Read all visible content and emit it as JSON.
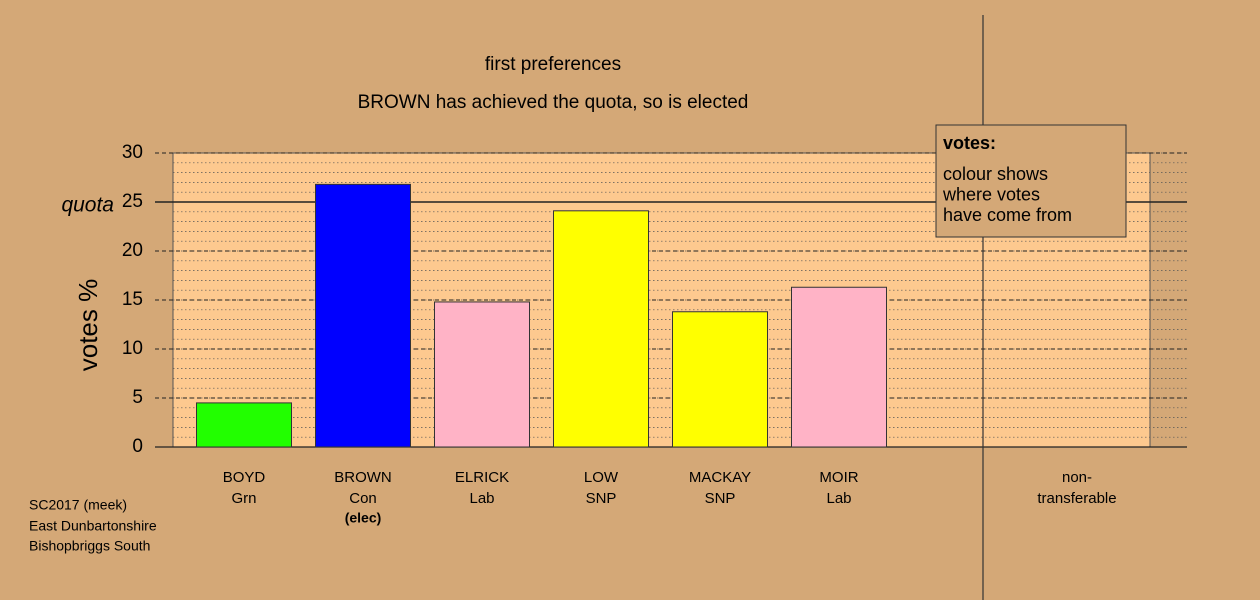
{
  "chart_data": {
    "type": "bar",
    "title": "first preferences",
    "subtitle": "BROWN has achieved the quota, so is elected",
    "y_label": "votes %",
    "categories": [
      "BOYD",
      "BROWN",
      "ELRICK",
      "LOW",
      "MACKAY",
      "MOIR"
    ],
    "parties": [
      "Grn",
      "Con",
      "Lab",
      "SNP",
      "SNP",
      "Lab"
    ],
    "elected_note": {
      "index": 1,
      "text": "(elec)"
    },
    "values": [
      4.5,
      26.8,
      14.8,
      24.1,
      13.8,
      16.3
    ],
    "colors": [
      "#22ff00",
      "#0000ff",
      "#ffb3c6",
      "#ffff00",
      "#ffff00",
      "#ffb3c6"
    ],
    "nontransferable": {
      "label": [
        "non-",
        "transferable"
      ],
      "value": 0
    },
    "quota": {
      "value": 25,
      "label": "quota"
    },
    "ylim": [
      0,
      30
    ],
    "yticks": [
      0,
      5,
      10,
      15,
      20,
      25,
      30
    ],
    "grid": true,
    "legend": {
      "title": "votes:",
      "lines": [
        "colour shows",
        "where votes",
        "have come from"
      ]
    },
    "footer": [
      "SC2017 (meek)",
      "East Dunbartonshire",
      "Bishopbriggs South"
    ]
  }
}
